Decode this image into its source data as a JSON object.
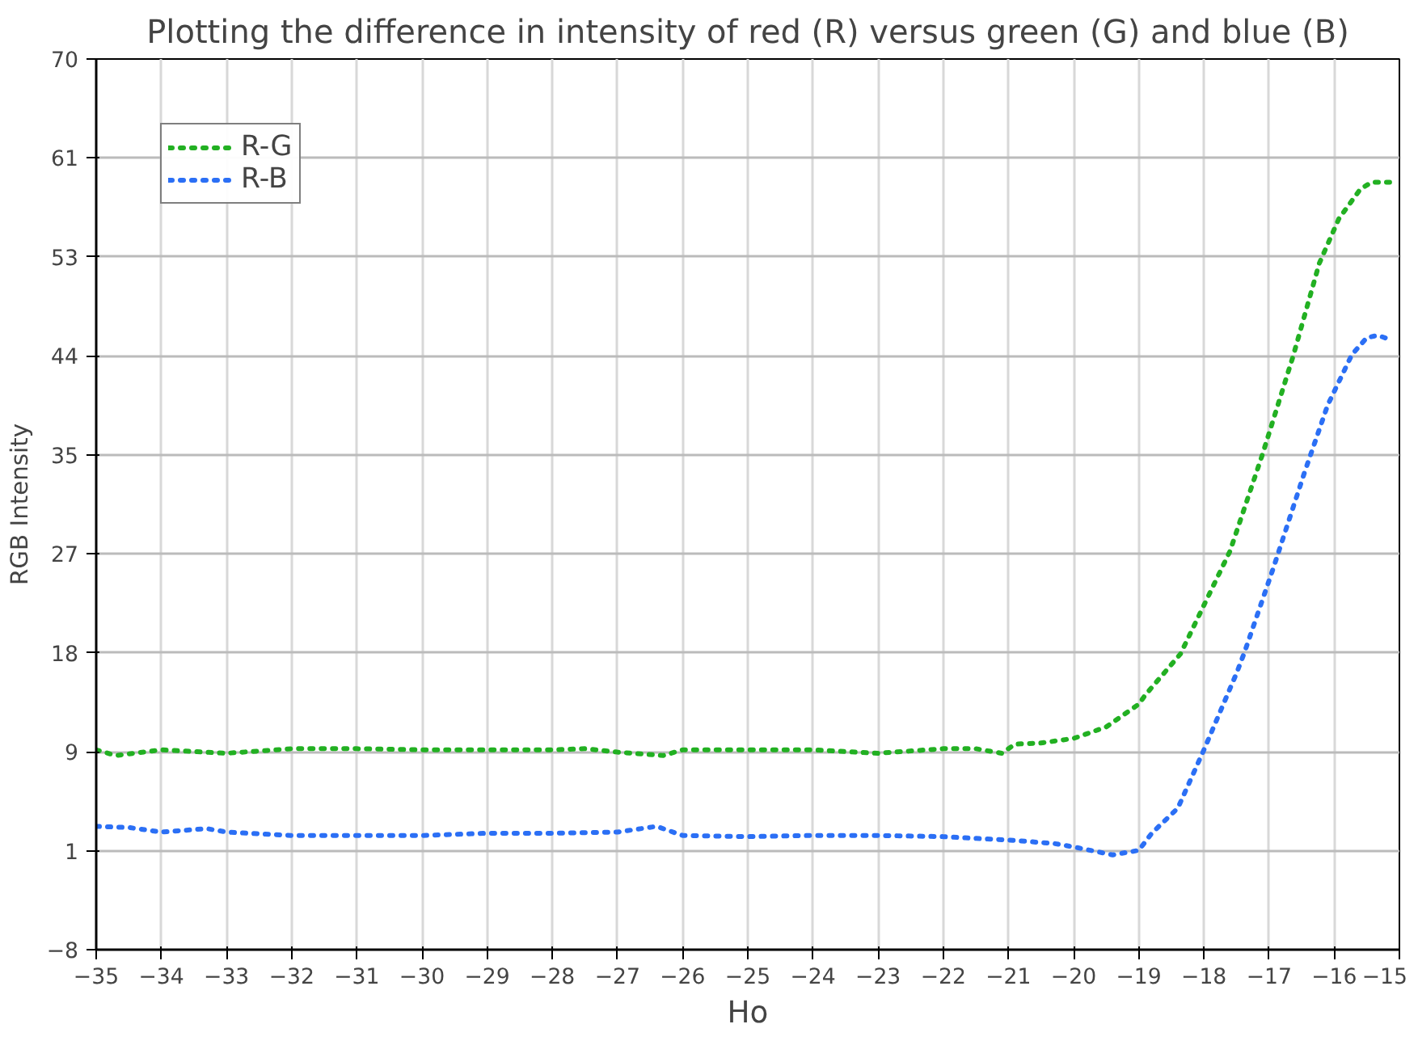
{
  "chart_data": {
    "type": "line",
    "title": "Plotting the difference in intensity of red (R) versus green (G) and blue (B)",
    "xlabel": "Ho",
    "ylabel": "RGB Intensity",
    "xlim": [
      -35,
      -15
    ],
    "xticks": [
      -35,
      -34,
      -33,
      -32,
      -31,
      -30,
      -29,
      -28,
      -27,
      -26,
      -25,
      -24,
      -23,
      -22,
      -21,
      -20,
      -19,
      -18,
      -17,
      -16,
      -15
    ],
    "ylim": [
      -8,
      70
    ],
    "yticks": [
      -8,
      {
        "value": 0.67,
        "label": "1"
      },
      {
        "value": 9.33,
        "label": "9"
      },
      18,
      {
        "value": 26.67,
        "label": "27"
      },
      {
        "value": 35.33,
        "label": "35"
      },
      44,
      {
        "value": 52.67,
        "label": "53"
      },
      {
        "value": 61.33,
        "label": "61"
      },
      70
    ],
    "grid": true,
    "legend": "top left",
    "line_style": "dotted",
    "series": [
      {
        "name": "R-G",
        "color": "#22b022",
        "x": [
          -35,
          -34.7,
          -34,
          -33,
          -32,
          -31,
          -30,
          -29,
          -28,
          -27.5,
          -27,
          -26.3,
          -26,
          -25,
          -24,
          -23,
          -22,
          -21.5,
          -21.1,
          -20.9,
          -20.5,
          -20,
          -19.5,
          -19,
          -18.9,
          -18.36,
          -17.6,
          -17.1,
          -16.63,
          -16.23,
          -15.93,
          -15.6,
          -15.43,
          -15.15
        ],
        "values": [
          9.5,
          9.0,
          9.5,
          9.2,
          9.6,
          9.6,
          9.5,
          9.5,
          9.5,
          9.6,
          9.3,
          9.0,
          9.5,
          9.5,
          9.5,
          9.2,
          9.6,
          9.6,
          9.2,
          10.0,
          10.1,
          10.5,
          11.5,
          13.5,
          14.3,
          17.9,
          26.9,
          35.4,
          44.0,
          52.1,
          56.0,
          58.6,
          59.2,
          59.2
        ]
      },
      {
        "name": "R-B",
        "color": "#2b6ff5",
        "x": [
          -35,
          -34.5,
          -34,
          -33.3,
          -33,
          -32,
          -31,
          -30,
          -29,
          -28,
          -27,
          -26.4,
          -26,
          -25,
          -24,
          -23,
          -22,
          -21,
          -20.3,
          -20,
          -19.4,
          -19,
          -18.8,
          -18.4,
          -18,
          -17.5,
          -17.38,
          -16.93,
          -16.45,
          -16.1,
          -15.73,
          -15.5,
          -15.33,
          -15.18
        ],
        "values": [
          2.8,
          2.7,
          2.3,
          2.6,
          2.3,
          2.0,
          2.0,
          2.0,
          2.2,
          2.2,
          2.3,
          2.8,
          2.0,
          1.9,
          2.0,
          2.0,
          1.9,
          1.6,
          1.3,
          1.0,
          0.3,
          0.7,
          2.2,
          4.4,
          9.5,
          16.2,
          18.0,
          25.5,
          33.9,
          39.7,
          44.1,
          45.6,
          45.8,
          45.5
        ]
      }
    ]
  }
}
